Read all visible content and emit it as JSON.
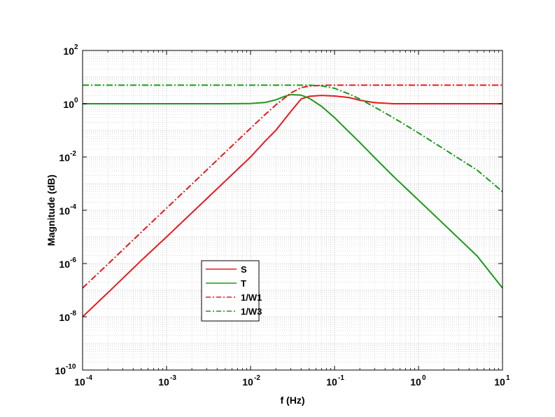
{
  "chart_data": {
    "type": "line",
    "title": "",
    "xlabel": "f (Hz)",
    "ylabel": "Magnitude (dB)",
    "xscale": "log",
    "yscale": "log",
    "xlim": [
      0.0001,
      10
    ],
    "ylim": [
      1e-10,
      100
    ],
    "grid": true,
    "legend_position": "lower-left",
    "x_ticks": [
      {
        "value": 0.0001,
        "base": "10",
        "exp": "-4"
      },
      {
        "value": 0.001,
        "base": "10",
        "exp": "-3"
      },
      {
        "value": 0.01,
        "base": "10",
        "exp": "-2"
      },
      {
        "value": 0.1,
        "base": "10",
        "exp": "-1"
      },
      {
        "value": 1,
        "base": "10",
        "exp": "0"
      },
      {
        "value": 10,
        "base": "10",
        "exp": "1"
      }
    ],
    "y_ticks": [
      {
        "value": 1e-10,
        "base": "10",
        "exp": "-10"
      },
      {
        "value": 1e-08,
        "base": "10",
        "exp": "-8"
      },
      {
        "value": 1e-06,
        "base": "10",
        "exp": "-6"
      },
      {
        "value": 0.0001,
        "base": "10",
        "exp": "-4"
      },
      {
        "value": 0.01,
        "base": "10",
        "exp": "-2"
      },
      {
        "value": 1,
        "base": "10",
        "exp": "0"
      },
      {
        "value": 100,
        "base": "10",
        "exp": "2"
      }
    ],
    "series": [
      {
        "name": "S",
        "color": "#e8191d",
        "dash": "solid",
        "x": [
          0.0001,
          0.0002,
          0.0005,
          0.001,
          0.002,
          0.005,
          0.01,
          0.015,
          0.02,
          0.03,
          0.04,
          0.05,
          0.07,
          0.1,
          0.15,
          0.2,
          0.3,
          0.5,
          1,
          2,
          5,
          10
        ],
        "y": [
          1e-08,
          8e-08,
          1.3e-06,
          1e-05,
          8e-05,
          0.00125,
          0.01,
          0.04,
          0.1,
          0.5,
          1.5,
          1.9,
          2.05,
          1.95,
          1.7,
          1.35,
          1.1,
          1.0,
          1.0,
          1.0,
          1.0,
          1.0
        ]
      },
      {
        "name": "T",
        "color": "#1a9a1a",
        "dash": "solid",
        "x": [
          0.0001,
          0.001,
          0.005,
          0.01,
          0.015,
          0.02,
          0.025,
          0.03,
          0.04,
          0.05,
          0.07,
          0.1,
          0.15,
          0.2,
          0.3,
          0.5,
          1,
          2,
          5,
          10
        ],
        "y": [
          1,
          1,
          1,
          1.02,
          1.12,
          1.4,
          1.85,
          2.2,
          2.1,
          1.6,
          0.8,
          0.3,
          0.085,
          0.035,
          0.0095,
          0.0019,
          0.00024,
          3e-05,
          1.9e-06,
          1.2e-07
        ]
      },
      {
        "name": "1/W1",
        "color": "#e8191d",
        "dash": "dashdot",
        "x": [
          0.0001,
          0.0002,
          0.0005,
          0.001,
          0.002,
          0.005,
          0.01,
          0.015,
          0.02,
          0.03,
          0.04,
          0.05,
          0.07,
          0.1,
          1,
          10
        ],
        "y": [
          1.2e-07,
          9.5e-07,
          1.5e-05,
          0.00012,
          0.00095,
          0.015,
          0.12,
          0.4,
          0.9,
          2.5,
          4,
          4.6,
          4.9,
          5,
          5,
          5
        ]
      },
      {
        "name": "1/W3",
        "color": "#1a9a1a",
        "dash": "dashdot",
        "x": [
          0.0001,
          0.01,
          0.03,
          0.05,
          0.07,
          0.1,
          0.15,
          0.2,
          0.3,
          0.5,
          1,
          2,
          5,
          10
        ],
        "y": [
          5,
          5,
          5,
          5,
          4.7,
          3.8,
          2.3,
          1.5,
          0.75,
          0.3,
          0.08,
          0.02,
          0.0032,
          0.0005
        ]
      }
    ]
  }
}
